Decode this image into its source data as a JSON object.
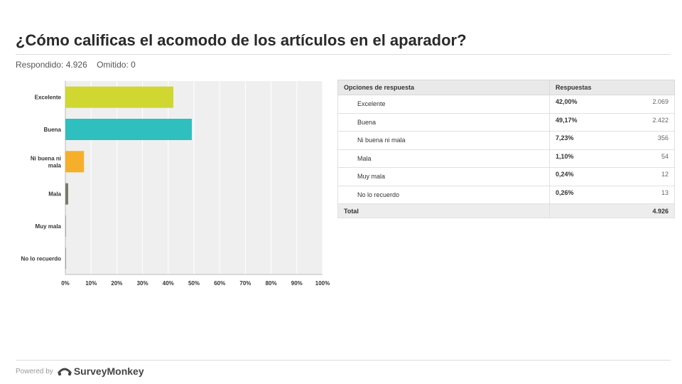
{
  "header": {
    "title": "¿Cómo calificas el acomodo de los artículos en el aparador?",
    "answered": "Respondido: 4.926",
    "skipped": "Omitido: 0"
  },
  "chart_data": {
    "type": "bar",
    "orientation": "horizontal",
    "categories": [
      "Excelente",
      "Buena",
      "Ni buena ni mala",
      "Mala",
      "Muy mala",
      "No lo recuerdo"
    ],
    "category_lines": [
      [
        "Excelente"
      ],
      [
        "Buena"
      ],
      [
        "Ni buena ni",
        "mala"
      ],
      [
        "Mala"
      ],
      [
        "Muy mala"
      ],
      [
        "No lo recuerdo"
      ]
    ],
    "values": [
      42.0,
      49.17,
      7.23,
      1.1,
      0.24,
      0.26
    ],
    "colors": [
      "#cfd730",
      "#2fbfbf",
      "#f5af2a",
      "#7a7a6a",
      "#999999",
      "#999999"
    ],
    "xlim": [
      0,
      100
    ],
    "xticks": [
      "0%",
      "10%",
      "20%",
      "30%",
      "40%",
      "50%",
      "60%",
      "70%",
      "80%",
      "90%",
      "100%"
    ],
    "grid": true
  },
  "table": {
    "col_option": "Opciones de respuesta",
    "col_responses": "Respuestas",
    "rows": [
      {
        "option": "Excelente",
        "pct": "42,00%",
        "count": "2.069"
      },
      {
        "option": "Buena",
        "pct": "49,17%",
        "count": "2.422"
      },
      {
        "option": "Ni buena ni mala",
        "pct": "7,23%",
        "count": "356"
      },
      {
        "option": "Mala",
        "pct": "1,10%",
        "count": "54"
      },
      {
        "option": "Muy mala",
        "pct": "0,24%",
        "count": "12"
      },
      {
        "option": "No lo recuerdo",
        "pct": "0,26%",
        "count": "13"
      }
    ],
    "total_label": "Total",
    "total_value": "4.926"
  },
  "footer": {
    "powered": "Powered by",
    "brand": "SurveyMonkey",
    "logo_icon": "surveymonkey-logo-icon"
  }
}
